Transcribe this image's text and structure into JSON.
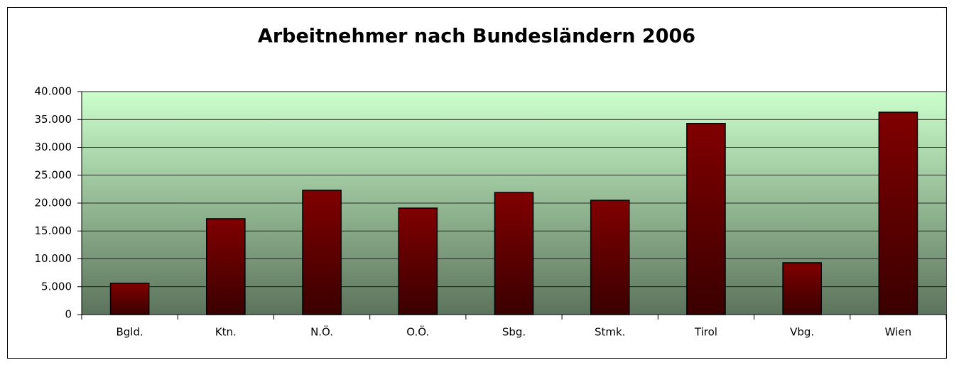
{
  "chart_data": {
    "type": "bar",
    "title": "Arbeitnehmer nach Bundesländern 2006",
    "categories": [
      "Bgld.",
      "Ktn.",
      "N.Ö.",
      "O.Ö.",
      "Sbg.",
      "Stmk.",
      "Tirol",
      "Vbg.",
      "Wien"
    ],
    "values": [
      5600,
      17200,
      22300,
      19100,
      21900,
      20500,
      34300,
      9300,
      36300
    ],
    "color": "#800000",
    "ylim": [
      0,
      40000
    ],
    "yticks": [
      0,
      {
        "value": 5000,
        "label": "5.000"
      },
      {
        "value": 10000,
        "label": "10.000"
      },
      {
        "value": 15000,
        "label": "15.000"
      },
      {
        "value": 20000,
        "label": "20.000"
      },
      {
        "value": 25000,
        "label": "25.000"
      },
      {
        "value": 30000,
        "label": "30.000"
      },
      {
        "value": 35000,
        "label": "35.000"
      },
      {
        "value": 40000,
        "label": "40.000"
      }
    ],
    "grid": true
  }
}
